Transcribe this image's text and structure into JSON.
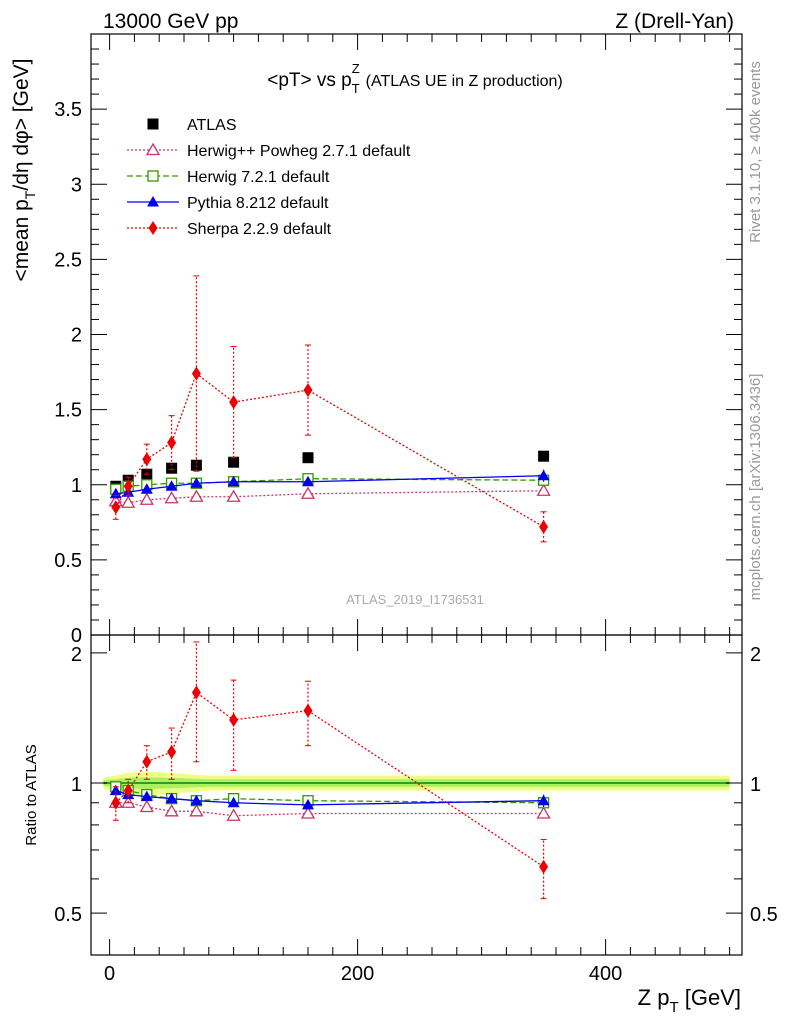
{
  "header": {
    "left": "13000 GeV pp",
    "right": "Z (Drell-Yan)"
  },
  "side_text": {
    "rivet": "Rivet 3.1.10, ≥ 400k events",
    "mcplots": "mcplots.cern.ch [arXiv:1306.3436]"
  },
  "watermark": "ATLAS_2019_I1736531",
  "colors": {
    "atlas": "#000000",
    "herwigpp": "#cc3366",
    "herwig7": "#339900",
    "pythia": "#0000ee",
    "sherpa": "#ee0000",
    "band_outer": "#eeff88",
    "band_inner": "#99ee55",
    "ratio_line": "#339933"
  },
  "chart_data": [
    {
      "type": "scatter",
      "title_main": "<pT> vs p",
      "title_sup": "Z",
      "title_sub": "T",
      "title_extra": "(ATLAS UE in Z production)",
      "ylabel_main": "<mean p",
      "ylabel_sub": "T",
      "ylabel_rest": "/dη dφ> [GeV]",
      "xlim": [
        -15,
        510
      ],
      "ylim": [
        0,
        4
      ],
      "ytick_labels": [
        "0",
        "0.5",
        "1",
        "1.5",
        "2",
        "2.5",
        "3",
        "3.5"
      ],
      "ytick_values": [
        0,
        0.5,
        1,
        1.5,
        2,
        2.5,
        3,
        3.5
      ],
      "legend_position": "top-left",
      "series": [
        {
          "key": "atlas",
          "name": "ATLAS",
          "marker": "square-filled",
          "line": "none",
          "x": [
            5,
            15,
            30,
            50,
            70,
            100,
            160,
            350
          ],
          "y": [
            0.99,
            1.03,
            1.07,
            1.11,
            1.13,
            1.15,
            1.18,
            1.19
          ],
          "err": [
            0.01,
            0.01,
            0.01,
            0.01,
            0.01,
            0.01,
            0.01,
            0.01
          ]
        },
        {
          "key": "herwigpp",
          "name": "Herwig++ Powheg 2.7.1 default",
          "marker": "triangle-open",
          "line": "dotted",
          "x": [
            5,
            15,
            30,
            50,
            70,
            100,
            160,
            350
          ],
          "y": [
            0.89,
            0.88,
            0.9,
            0.91,
            0.92,
            0.92,
            0.94,
            0.96
          ],
          "err": [
            0.01,
            0.01,
            0.01,
            0.01,
            0.01,
            0.01,
            0.01,
            0.01
          ]
        },
        {
          "key": "herwig7",
          "name": "Herwig 7.2.1 default",
          "marker": "square-open",
          "line": "dashed",
          "x": [
            5,
            15,
            30,
            50,
            70,
            100,
            160,
            350
          ],
          "y": [
            0.97,
            0.99,
            1.0,
            1.01,
            1.01,
            1.02,
            1.04,
            1.03
          ],
          "err": [
            0.01,
            0.01,
            0.01,
            0.01,
            0.01,
            0.01,
            0.01,
            0.02
          ]
        },
        {
          "key": "pythia",
          "name": "Pythia 8.212 default",
          "marker": "triangle-filled",
          "line": "solid",
          "x": [
            5,
            15,
            30,
            50,
            70,
            100,
            160,
            350
          ],
          "y": [
            0.94,
            0.95,
            0.97,
            0.99,
            1.01,
            1.02,
            1.02,
            1.06
          ],
          "err": [
            0.01,
            0.01,
            0.01,
            0.01,
            0.01,
            0.01,
            0.02,
            0.04
          ]
        },
        {
          "key": "sherpa",
          "name": "Sherpa 2.2.9 default",
          "marker": "diamond-filled",
          "line": "dotted",
          "x": [
            5,
            15,
            30,
            50,
            70,
            100,
            160,
            350
          ],
          "y": [
            0.85,
            0.99,
            1.17,
            1.28,
            1.74,
            1.55,
            1.63,
            0.72
          ],
          "err": [
            0.08,
            0.06,
            0.1,
            0.18,
            0.65,
            0.37,
            0.3,
            0.1
          ]
        }
      ]
    },
    {
      "type": "scatter",
      "ylabel": "Ratio to ATLAS",
      "xlabel_main": "Z p",
      "xlabel_sub": "T",
      "xlabel_rest": " [GeV]",
      "xlim": [
        -15,
        510
      ],
      "ylim": [
        0.4,
        2.2
      ],
      "log_y": true,
      "ytick_labels": [
        "0.5",
        "1",
        "2"
      ],
      "ytick_values": [
        0.5,
        1,
        2
      ],
      "xtick_labels": [
        "0",
        "200",
        "400"
      ],
      "xtick_values": [
        0,
        200,
        400
      ],
      "reference": 1,
      "band": {
        "x": [
          -5,
          5,
          10,
          20,
          40,
          60,
          80,
          120,
          200,
          500
        ],
        "outer": [
          0.03,
          0.04,
          0.05,
          0.06,
          0.06,
          0.05,
          0.04,
          0.04,
          0.04,
          0.04
        ],
        "inner": [
          0.015,
          0.02,
          0.025,
          0.03,
          0.03,
          0.025,
          0.02,
          0.02,
          0.02,
          0.02
        ]
      },
      "series": [
        {
          "key": "herwigpp",
          "marker": "triangle-open",
          "line": "dotted",
          "x": [
            5,
            15,
            30,
            50,
            70,
            100,
            160,
            350
          ],
          "y": [
            0.9,
            0.9,
            0.88,
            0.86,
            0.86,
            0.84,
            0.85,
            0.85
          ],
          "err": [
            0.01,
            0.01,
            0.01,
            0.01,
            0.01,
            0.01,
            0.01,
            0.01
          ]
        },
        {
          "key": "herwig7",
          "marker": "square-open",
          "line": "dashed",
          "x": [
            5,
            15,
            30,
            50,
            70,
            100,
            160,
            350
          ],
          "y": [
            0.98,
            0.96,
            0.94,
            0.92,
            0.91,
            0.92,
            0.91,
            0.9
          ],
          "err": [
            0.01,
            0.01,
            0.01,
            0.01,
            0.01,
            0.01,
            0.01,
            0.01
          ]
        },
        {
          "key": "pythia",
          "marker": "triangle-filled",
          "line": "solid",
          "x": [
            5,
            15,
            30,
            50,
            70,
            100,
            160,
            350
          ],
          "y": [
            0.96,
            0.94,
            0.93,
            0.92,
            0.91,
            0.9,
            0.89,
            0.91
          ],
          "err": [
            0.01,
            0.01,
            0.01,
            0.01,
            0.01,
            0.01,
            0.02,
            0.03
          ]
        },
        {
          "key": "sherpa",
          "marker": "diamond-filled",
          "line": "dotted",
          "x": [
            5,
            15,
            30,
            50,
            70,
            100,
            160,
            350
          ],
          "y": [
            0.9,
            0.96,
            1.12,
            1.18,
            1.62,
            1.4,
            1.47,
            0.64
          ],
          "err": [
            0.08,
            0.06,
            0.1,
            0.16,
            0.5,
            0.33,
            0.25,
            0.1
          ]
        }
      ]
    }
  ]
}
